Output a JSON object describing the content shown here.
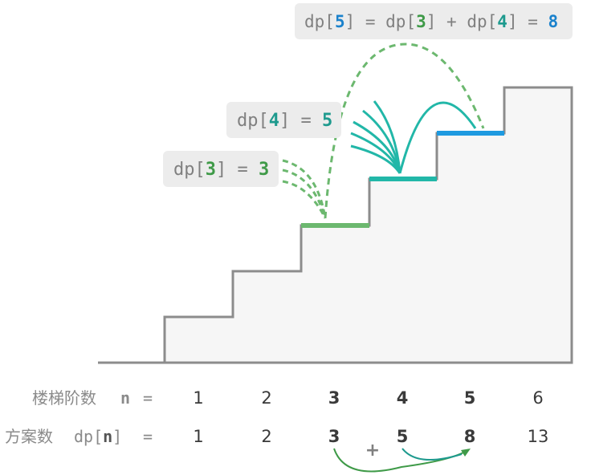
{
  "colors": {
    "green": "#3f9a48",
    "teal": "#1e9a8e",
    "blue": "#1b82cc",
    "stair": "#8c8c8c",
    "stair_fill": "#f6f6f6",
    "label_bg": "#ececec",
    "text_gray": "#808080"
  },
  "labels": {
    "dp3": {
      "prefix": "dp[",
      "index": "3",
      "mid": "] = ",
      "value": "3"
    },
    "dp4": {
      "prefix": "dp[",
      "index": "4",
      "mid": "] = ",
      "value": "5"
    },
    "dp5": {
      "p1": "dp[",
      "i1": "5",
      "p2": "] = dp[",
      "i2": "3",
      "p3": "] + dp[",
      "i3": "4",
      "p4": "] = ",
      "value": "8"
    }
  },
  "table": {
    "row1": {
      "label": "楼梯阶数",
      "var": "n",
      "eq": "=",
      "values": [
        "1",
        "2",
        "3",
        "4",
        "5",
        "6"
      ]
    },
    "row2": {
      "label": "方案数",
      "var": "dp[",
      "var_n": "n",
      "var_close": "]",
      "eq": "=",
      "values": [
        "1",
        "2",
        "3",
        "5",
        "8",
        "13"
      ]
    },
    "plus": "+"
  }
}
